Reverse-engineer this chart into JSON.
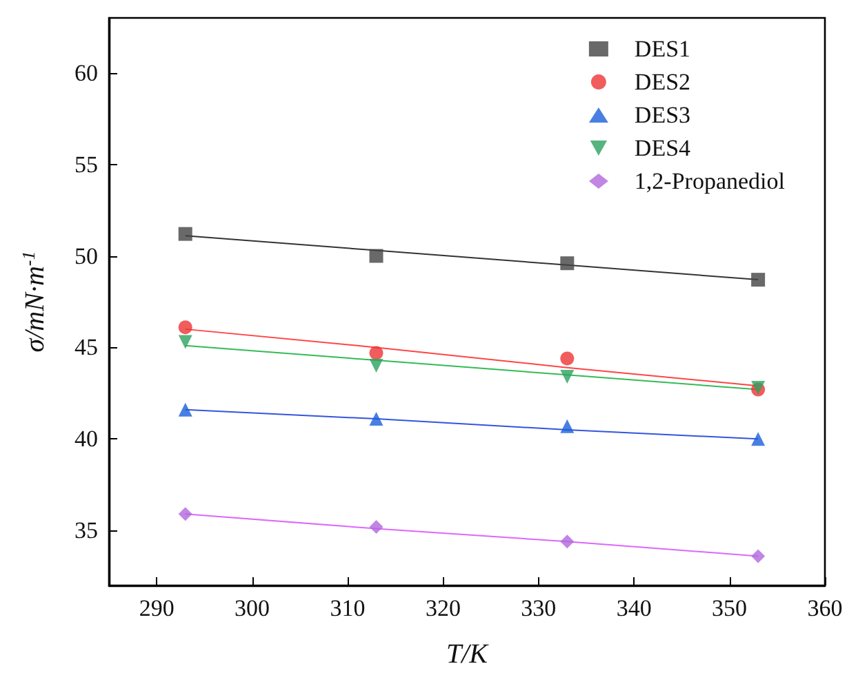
{
  "chart_data": {
    "type": "scatter",
    "xlabel": "T/K",
    "ylabel": "σ/mN·m$^{-1}$",
    "xlim": [
      285,
      360
    ],
    "xticks": [
      290,
      300,
      310,
      320,
      330,
      340,
      350,
      360
    ],
    "ylim": [
      32,
      63
    ],
    "yticks": [
      35,
      40,
      45,
      50,
      55,
      60
    ],
    "grid": false,
    "legend": "top right",
    "x": [
      293,
      313,
      333,
      353
    ],
    "series": [
      {
        "name": "DES1",
        "color": "#444444",
        "marker": "square",
        "values": [
          51.2,
          50.0,
          49.6,
          48.7
        ]
      },
      {
        "name": "DES2",
        "color": "#ee3333",
        "marker": "circle",
        "values": [
          46.1,
          44.7,
          44.4,
          42.7
        ]
      },
      {
        "name": "DES3",
        "color": "#1a5fdc",
        "marker": "triangle",
        "values": [
          41.6,
          41.1,
          40.7,
          40.0
        ]
      },
      {
        "name": "DES4",
        "color": "#2ca25f",
        "marker": "triangle-down",
        "values": [
          45.3,
          44.0,
          43.4,
          42.8
        ]
      },
      {
        "name": "1,2-Propanediol",
        "color": "#b266dd",
        "marker": "diamond",
        "values": [
          35.9,
          35.2,
          34.4,
          33.6
        ]
      },
      {
        "type": "line",
        "color": "#333333",
        "marker": "none",
        "line_style": "solid",
        "values": [
          51.1,
          50.3,
          49.5,
          48.7
        ]
      },
      {
        "type": "line",
        "color": "#ff4444",
        "marker": "none",
        "line_style": "solid",
        "values": [
          46.0,
          45.0,
          43.9,
          42.9
        ]
      },
      {
        "type": "line",
        "color": "#3355dd",
        "marker": "none",
        "line_style": "solid",
        "values": [
          41.6,
          41.1,
          40.5,
          40.0
        ]
      },
      {
        "type": "line",
        "color": "#33bb55",
        "marker": "none",
        "line_style": "solid",
        "values": [
          45.1,
          44.3,
          43.5,
          42.7
        ]
      },
      {
        "type": "line",
        "color": "#dd66ff",
        "marker": "none",
        "line_style": "solid",
        "values": [
          35.9,
          35.1,
          34.4,
          33.6
        ]
      }
    ]
  }
}
